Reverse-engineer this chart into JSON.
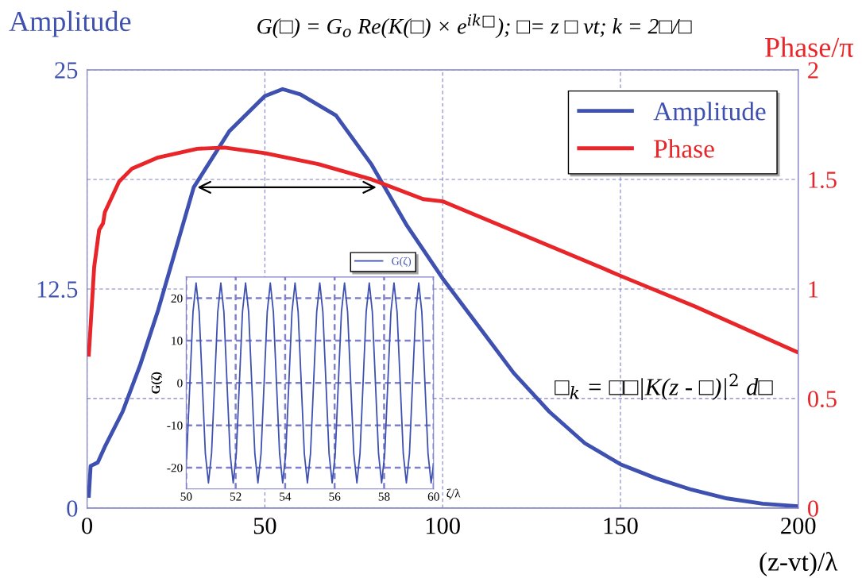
{
  "chart_data": [
    {
      "type": "line",
      "xlabel": "(z-vt)/λ",
      "ylabel": "Amplitude",
      "y2label": "Phase/π",
      "x": [
        0.5,
        1,
        3,
        5,
        10,
        15,
        20,
        25,
        30,
        40,
        50,
        55,
        60,
        70,
        80,
        90,
        100,
        110,
        120,
        130,
        140,
        150,
        160,
        170,
        180,
        190,
        200
      ],
      "series": [
        {
          "name": "Amplitude",
          "color": "#3f51b0",
          "values": [
            0.7,
            2.4,
            2.6,
            3.5,
            5.5,
            8.2,
            11.3,
            14.8,
            18.3,
            21.5,
            23.5,
            23.9,
            23.6,
            22.4,
            19.6,
            16.1,
            13.1,
            10.4,
            7.7,
            5.5,
            3.7,
            2.5,
            1.7,
            1.05,
            0.55,
            0.25,
            0.1
          ]
        },
        {
          "name": "Phase",
          "color": "#e8262a",
          "axis": "y2",
          "x": [
            0.5,
            2,
            3.4,
            4.5,
            5,
            9,
            12.7,
            20,
            31,
            38.7,
            50,
            65,
            80,
            94.5,
            100,
            145.7,
            150,
            171,
            200
          ],
          "values": [
            0.7,
            1.1,
            1.27,
            1.3,
            1.35,
            1.49,
            1.55,
            1.6,
            1.64,
            1.645,
            1.62,
            1.57,
            1.5,
            1.41,
            1.4,
            1.09,
            1.06,
            0.92,
            0.71
          ]
        }
      ],
      "xlim": [
        0,
        200
      ],
      "xticks": [
        0,
        50,
        100,
        150,
        200
      ],
      "ylim": [
        0,
        25
      ],
      "yticks": [
        0,
        {
          "value": 6.25,
          "label": null
        },
        12.5,
        {
          "value": 18.75,
          "label": null
        },
        25
      ],
      "y2lim": [
        0,
        2
      ],
      "y2ticks": [
        0,
        0.5,
        1,
        1.5,
        2
      ],
      "grid": true,
      "legend": "top right",
      "line_style": "solid",
      "marker": "none",
      "annotations": [
        "G(□) = G$_{o}$ Re(K(□) × e$^{ik□}$); □= z □ vt; k = 2□/□",
        "□$_{k}$ = □□|K(z - □)|$^{2}$ d□"
      ]
    },
    {
      "type": "line",
      "xlabel": "ζ/λ",
      "ylabel": "G(ζ)",
      "x": [
        50,
        50.025,
        50.15,
        50.275,
        50.4,
        50.525,
        50.65,
        50.775,
        50.9,
        51.025,
        51.15,
        51.275,
        51.4,
        51.525,
        51.65,
        51.775,
        51.9,
        52.025,
        52.15,
        52.275,
        52.4,
        52.525,
        52.65,
        52.775,
        52.9,
        53.025,
        53.15,
        53.275,
        53.4,
        53.525,
        53.65,
        53.775,
        53.9,
        54.025,
        54.15,
        54.275,
        54.4,
        54.525,
        54.65,
        54.775,
        54.9,
        55.025,
        55.15,
        55.275,
        55.4,
        55.525,
        55.65,
        55.775,
        55.9,
        56.025,
        56.15,
        56.275,
        56.4,
        56.525,
        56.65,
        56.775,
        56.9,
        57.025,
        57.15,
        57.275,
        57.4,
        57.525,
        57.65,
        57.775,
        57.9,
        58.025,
        58.15,
        58.275,
        58.4,
        58.525,
        58.65,
        58.775,
        58.9,
        59.025,
        59.15,
        59.275,
        59.4,
        59.525,
        59.65,
        59.775,
        59.9,
        60
      ],
      "series": [
        {
          "name": "G(ζ)",
          "color": "#3f51b0",
          "values": [
            -19,
            -16.7,
            0,
            16.7,
            23.6,
            16.7,
            0,
            -16.7,
            -23.6,
            -16.7,
            0,
            16.7,
            23.6,
            16.7,
            0,
            -16.7,
            -23.6,
            -16.7,
            0,
            16.7,
            23.6,
            16.7,
            0,
            -16.7,
            -23.6,
            -16.7,
            0,
            16.7,
            23.6,
            16.7,
            0,
            -16.7,
            -23.6,
            -16.7,
            0,
            16.7,
            23.6,
            16.7,
            0,
            -16.7,
            -23.6,
            -16.7,
            0,
            16.7,
            23.6,
            16.7,
            0,
            -16.7,
            -23.6,
            -16.7,
            0,
            16.7,
            23.6,
            16.7,
            0,
            -16.7,
            -23.6,
            -16.7,
            0,
            16.7,
            23.6,
            16.7,
            0,
            -16.7,
            -23.6,
            -16.7,
            0,
            16.7,
            23.6,
            16.7,
            0,
            -16.7,
            -23.6,
            -16.7,
            0,
            16.7,
            23.6,
            16.7,
            0,
            -16.7,
            -23.6,
            -19
          ]
        }
      ],
      "xlim": [
        50,
        60
      ],
      "xticks": [
        50,
        52,
        54,
        56,
        58,
        60
      ],
      "ylim": [
        -25,
        25
      ],
      "yticks": [
        -20,
        -10,
        0,
        10,
        20
      ],
      "grid": true,
      "legend": "top right",
      "line_style": "solid",
      "marker": "none"
    }
  ]
}
